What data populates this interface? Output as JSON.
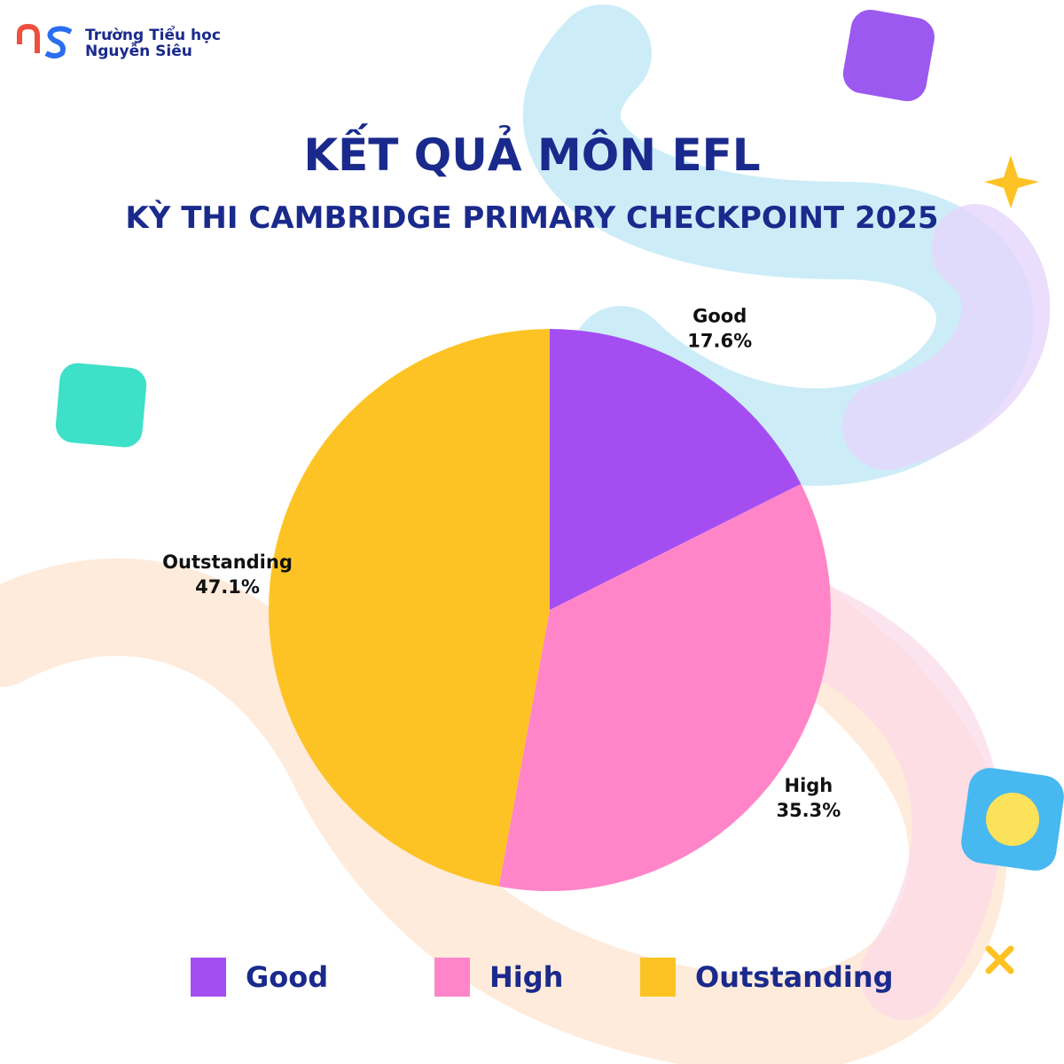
{
  "logo": {
    "line1": "Trường Tiểu học",
    "line2": "Nguyễn Siêu"
  },
  "chart_data": {
    "type": "pie",
    "title": "KẾT QUẢ MÔN EFL",
    "subtitle": "KỲ THI CAMBRIDGE PRIMARY CHECKPOINT 2025",
    "categories": [
      "Good",
      "High",
      "Outstanding"
    ],
    "values": [
      17.6,
      35.3,
      47.1
    ],
    "value_labels": [
      "17.6%",
      "35.3%",
      "47.1%"
    ],
    "colors": [
      "#a44ef2",
      "#ff85c8",
      "#fdc324"
    ],
    "legend": "bottom"
  }
}
